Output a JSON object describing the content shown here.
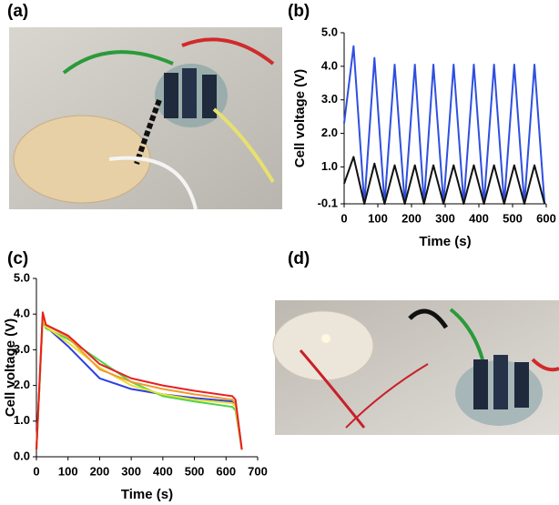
{
  "panel_labels": [
    "(a)",
    "(b)",
    "(c)",
    "(d)"
  ],
  "chart_data": [
    {
      "type": "line",
      "x_label": "Time (s)",
      "y_label": "Cell voltage (V)",
      "x": [
        0,
        28,
        60,
        90,
        120,
        150,
        180,
        210,
        237,
        265,
        295,
        325,
        355,
        385,
        415,
        445,
        475,
        505,
        535,
        565,
        595
      ],
      "series": [
        {
          "color": "#2f4fe0",
          "values": [
            2.3,
            4.6,
            -0.1,
            4.25,
            -0.1,
            4.05,
            -0.1,
            4.05,
            -0.1,
            4.05,
            -0.1,
            4.05,
            -0.1,
            4.05,
            -0.1,
            4.05,
            -0.1,
            4.05,
            -0.1,
            4.05,
            -0.1
          ]
        },
        {
          "color": "#111111",
          "values": [
            0.5,
            1.3,
            -0.1,
            1.1,
            -0.1,
            1.05,
            -0.1,
            1.05,
            -0.1,
            1.05,
            -0.1,
            1.05,
            -0.1,
            1.05,
            -0.1,
            1.05,
            -0.1,
            1.05,
            -0.1,
            1.05,
            -0.1
          ]
        }
      ],
      "xlim": [
        0,
        600
      ],
      "xticks": [
        0,
        100,
        200,
        300,
        400,
        500,
        600
      ],
      "ylim": [
        -0.1,
        5.0
      ],
      "yticks": [
        -0.1,
        {
          "value": 1,
          "label": "1.0"
        },
        {
          "value": 2,
          "label": "2.0"
        },
        {
          "value": 3,
          "label": "3.0"
        },
        {
          "value": 4,
          "label": "4.0"
        },
        {
          "value": 5,
          "label": "5.0"
        }
      ]
    },
    {
      "type": "line",
      "x_label": "Time (s)",
      "y_label": "Cell voltage (V)",
      "x": [
        0,
        20,
        30,
        100,
        200,
        300,
        400,
        500,
        620,
        630,
        650
      ],
      "series": [
        {
          "color": "#2c3fe0",
          "values": [
            0.2,
            3.9,
            3.65,
            3.1,
            2.2,
            1.9,
            1.75,
            1.65,
            1.55,
            1.5,
            0.2
          ]
        },
        {
          "color": "#4fd24f",
          "values": [
            0.2,
            3.85,
            3.6,
            3.3,
            2.7,
            2.1,
            1.7,
            1.55,
            1.4,
            1.3,
            0.2
          ]
        },
        {
          "color": "#e8e030",
          "values": [
            0.2,
            3.9,
            3.65,
            3.2,
            2.5,
            2.0,
            1.75,
            1.6,
            1.5,
            1.4,
            0.2
          ]
        },
        {
          "color": "#f09a30",
          "values": [
            0.2,
            4.0,
            3.7,
            3.35,
            2.45,
            2.1,
            1.9,
            1.75,
            1.6,
            1.5,
            0.2
          ]
        },
        {
          "color": "#e82020",
          "values": [
            0.2,
            4.05,
            3.7,
            3.4,
            2.6,
            2.2,
            2.0,
            1.85,
            1.7,
            1.6,
            0.2
          ]
        }
      ],
      "xlim": [
        0,
        700
      ],
      "xticks": [
        0,
        100,
        200,
        300,
        400,
        500,
        600,
        700
      ],
      "ylim": [
        0,
        5
      ],
      "yticks": [
        {
          "value": 0,
          "label": "0.0"
        },
        {
          "value": 1,
          "label": "1.0"
        },
        {
          "value": 2,
          "label": "2.0"
        },
        {
          "value": 3,
          "label": "3.0"
        },
        {
          "value": 4,
          "label": "4.0"
        },
        {
          "value": 5,
          "label": "5.0"
        }
      ]
    }
  ]
}
